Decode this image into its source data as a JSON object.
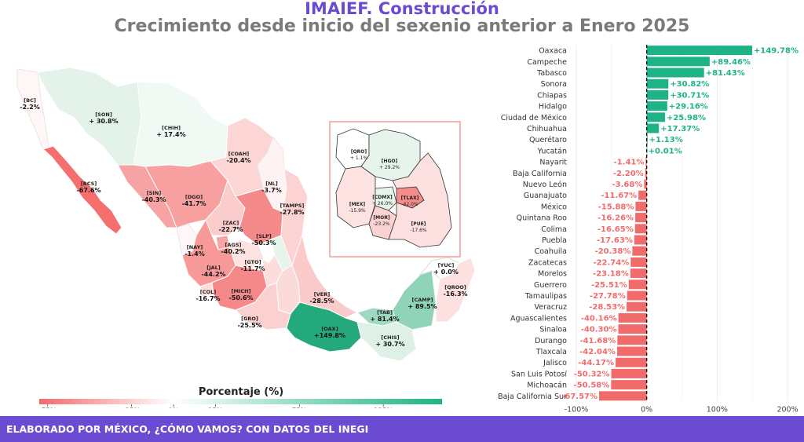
{
  "header": {
    "title": "IMAIEF. Construcción",
    "subtitle": "Crecimiento desde inicio del sexenio anterior a Enero 2025"
  },
  "footer": {
    "text": "ELABORADO POR MÉXICO, ¿CÓMO VAMOS? CON DATOS DEL INEGI"
  },
  "colors": {
    "positive": "#1db386",
    "negative": "#f26b6b",
    "brand": "#6a4bd1",
    "neutral": "#ffffff"
  },
  "legend": {
    "title": "Porcentaje (%)",
    "ticks": [
      "-75%",
      "-25%",
      "0%",
      "25%",
      "75%",
      "125%"
    ],
    "tick_values": [
      -75,
      -25,
      0,
      25,
      75,
      125
    ],
    "range": [
      -80,
      160
    ]
  },
  "map": {
    "states": [
      {
        "abbr": "[BC]",
        "value": "-2.2%"
      },
      {
        "abbr": "[SON]",
        "value": "+ 30.8%"
      },
      {
        "abbr": "[CHIH]",
        "value": "+ 17.4%"
      },
      {
        "abbr": "[COAH]",
        "value": "-20.4%"
      },
      {
        "abbr": "[NL]",
        "value": "-3.7%"
      },
      {
        "abbr": "[TAMPS]",
        "value": "-27.8%"
      },
      {
        "abbr": "[BCS]",
        "value": "-67.6%"
      },
      {
        "abbr": "[SIN]",
        "value": "-40.3%"
      },
      {
        "abbr": "[DGO]",
        "value": "-41.7%"
      },
      {
        "abbr": "[ZAC]",
        "value": "-22.7%"
      },
      {
        "abbr": "[SLP]",
        "value": "-50.3%"
      },
      {
        "abbr": "[AGS]",
        "value": "-40.2%"
      },
      {
        "abbr": "[NAY]",
        "value": "-1.4%"
      },
      {
        "abbr": "[GTO]",
        "value": "-11.7%"
      },
      {
        "abbr": "[JAL]",
        "value": "-44.2%"
      },
      {
        "abbr": "[COL]",
        "value": "-16.7%"
      },
      {
        "abbr": "[MICH]",
        "value": "-50.6%"
      },
      {
        "abbr": "[GRO]",
        "value": "-25.5%"
      },
      {
        "abbr": "[VER]",
        "value": "-28.5%"
      },
      {
        "abbr": "[OAX]",
        "value": "+149.8%"
      },
      {
        "abbr": "[TAB]",
        "value": "+ 81.4%"
      },
      {
        "abbr": "[CHIS]",
        "value": "+ 30.7%"
      },
      {
        "abbr": "[CAMP]",
        "value": "+ 89.5%"
      },
      {
        "abbr": "[YUC]",
        "value": "+ 0.0%"
      },
      {
        "abbr": "[QROO]",
        "value": "-16.3%"
      }
    ],
    "inset": [
      {
        "abbr": "[QRO]",
        "value": "+ 1.1%"
      },
      {
        "abbr": "[HGO]",
        "value": "+ 29.2%"
      },
      {
        "abbr": "[MEX]",
        "value": "-15.9%"
      },
      {
        "abbr": "[CDMX]",
        "value": "+ 26.0%"
      },
      {
        "abbr": "[TLAX]",
        "value": "-42.0%"
      },
      {
        "abbr": "[MOR]",
        "value": "-23.2%"
      },
      {
        "abbr": "[PUE]",
        "value": "-17.6%"
      }
    ]
  },
  "chart_data": {
    "type": "bar",
    "orientation": "horizontal",
    "title": "Crecimiento desde inicio del sexenio anterior a Enero 2025",
    "categories": [
      "Oaxaca",
      "Campeche",
      "Tabasco",
      "Sonora",
      "Chiapas",
      "Hidalgo",
      "Ciudad de México",
      "Chihuahua",
      "Querétaro",
      "Yucatán",
      "Nayarit",
      "Baja California",
      "Nuevo León",
      "Guanajuato",
      "México",
      "Quintana Roo",
      "Colima",
      "Puebla",
      "Coahuila",
      "Zacatecas",
      "Morelos",
      "Guerrero",
      "Tamaulipas",
      "Veracruz",
      "Aguascalientes",
      "Sinaloa",
      "Durango",
      "Tlaxcala",
      "Jalisco",
      "San Luis Potosí",
      "Michoacán",
      "Baja California Sur"
    ],
    "values": [
      149.78,
      89.46,
      81.43,
      30.82,
      30.71,
      29.16,
      25.98,
      17.37,
      1.13,
      0.01,
      -1.41,
      -2.2,
      -3.68,
      -11.67,
      -15.88,
      -16.26,
      -16.65,
      -17.63,
      -20.38,
      -22.74,
      -23.18,
      -25.51,
      -27.78,
      -28.53,
      -40.16,
      -40.3,
      -41.68,
      -42.04,
      -44.17,
      -50.32,
      -50.58,
      -67.57
    ],
    "value_labels": [
      "+149.78%",
      "+89.46%",
      "+81.43%",
      "+30.82%",
      "+30.71%",
      "+29.16%",
      "+25.98%",
      "+17.37%",
      "+1.13%",
      "+0.01%",
      "-1.41%",
      "-2.20%",
      "-3.68%",
      "-11.67%",
      "-15.88%",
      "-16.26%",
      "-16.65%",
      "-17.63%",
      "-20.38%",
      "-22.74%",
      "-23.18%",
      "-25.51%",
      "-27.78%",
      "-28.53%",
      "-40.16%",
      "-40.30%",
      "-41.68%",
      "-42.04%",
      "-44.17%",
      "-50.32%",
      "-50.58%",
      "-67.57%"
    ],
    "xlim": [
      -110,
      210
    ],
    "xticks": [
      -100,
      0,
      100,
      200
    ],
    "xtick_labels": [
      "-100%",
      "0%",
      "100%",
      "200%"
    ],
    "grid": true,
    "zero_line": "dashed"
  }
}
